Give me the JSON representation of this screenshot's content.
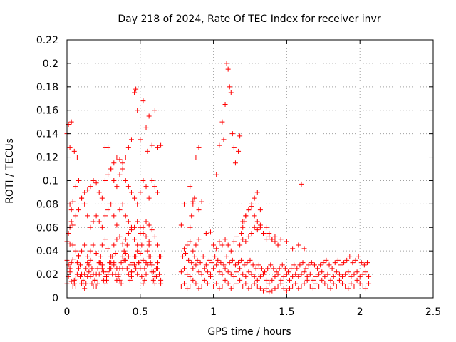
{
  "chart_data": {
    "type": "scatter",
    "title": "Day 218 of 2024, Rate Of TEC Index for receiver invr",
    "xlabel": "GPS time / hours",
    "ylabel": "ROTI / TECUs",
    "xlim": [
      0,
      2.5
    ],
    "ylim": [
      0,
      0.22
    ],
    "xticks": [
      0,
      0.5,
      1,
      1.5,
      2,
      2.5
    ],
    "xtick_labels": [
      "0",
      "0.5",
      "1",
      "1.5",
      "2",
      "2.5"
    ],
    "yticks": [
      0,
      0.02,
      0.04,
      0.06,
      0.08,
      0.1,
      0.12,
      0.14,
      0.16,
      0.18,
      0.2,
      0.22
    ],
    "ytick_labels": [
      "0",
      "0.02",
      "0.04",
      "0.06",
      "0.08",
      "0.1",
      "0.12",
      "0.14",
      "0.16",
      "0.18",
      "0.2",
      "0.22"
    ],
    "grid": true,
    "marker": "plus",
    "color": "#ff0000",
    "series": [
      {
        "name": "ROTI",
        "x": [
          0.0,
          0.01,
          0.02,
          0.03,
          0.04,
          0.05,
          0.06,
          0.07,
          0.08,
          0.09,
          0.1,
          0.11,
          0.12,
          0.13,
          0.14,
          0.15,
          0.16,
          0.17,
          0.18,
          0.19,
          0.2,
          0.21,
          0.22,
          0.23,
          0.24,
          0.25,
          0.26,
          0.27,
          0.28,
          0.29,
          0.3,
          0.31,
          0.32,
          0.33,
          0.34,
          0.35,
          0.36,
          0.37,
          0.38,
          0.39,
          0.4,
          0.41,
          0.42,
          0.43,
          0.44,
          0.45,
          0.46,
          0.47,
          0.48,
          0.49,
          0.5,
          0.51,
          0.52,
          0.53,
          0.54,
          0.55,
          0.56,
          0.57,
          0.58,
          0.59,
          0.6,
          0.61,
          0.62,
          0.63,
          0.64,
          0.0,
          0.01,
          0.02,
          0.03,
          0.04,
          0.05,
          0.06,
          0.07,
          0.08,
          0.09,
          0.1,
          0.11,
          0.12,
          0.13,
          0.14,
          0.15,
          0.16,
          0.17,
          0.18,
          0.19,
          0.2,
          0.21,
          0.22,
          0.23,
          0.24,
          0.25,
          0.26,
          0.27,
          0.28,
          0.29,
          0.3,
          0.31,
          0.32,
          0.33,
          0.34,
          0.35,
          0.36,
          0.37,
          0.38,
          0.39,
          0.4,
          0.41,
          0.42,
          0.43,
          0.44,
          0.45,
          0.46,
          0.47,
          0.48,
          0.49,
          0.5,
          0.51,
          0.52,
          0.53,
          0.54,
          0.55,
          0.56,
          0.57,
          0.58,
          0.59,
          0.6,
          0.61,
          0.62,
          0.63,
          0.64,
          0.0,
          0.02,
          0.04,
          0.06,
          0.08,
          0.1,
          0.12,
          0.14,
          0.16,
          0.18,
          0.2,
          0.22,
          0.24,
          0.26,
          0.28,
          0.3,
          0.32,
          0.34,
          0.36,
          0.38,
          0.4,
          0.42,
          0.44,
          0.46,
          0.48,
          0.5,
          0.52,
          0.54,
          0.56,
          0.58,
          0.6,
          0.62,
          0.64,
          0.01,
          0.02,
          0.03,
          0.04,
          0.06,
          0.08,
          0.1,
          0.12,
          0.14,
          0.16,
          0.18,
          0.2,
          0.22,
          0.24,
          0.26,
          0.28,
          0.3,
          0.32,
          0.34,
          0.36,
          0.38,
          0.4,
          0.42,
          0.44,
          0.46,
          0.48,
          0.5,
          0.52,
          0.54,
          0.56,
          0.0,
          0.01,
          0.02,
          0.03,
          0.05,
          0.07,
          0.26,
          0.28,
          0.3,
          0.32,
          0.34,
          0.36,
          0.38,
          0.4,
          0.42,
          0.44,
          0.46,
          0.47,
          0.48,
          0.5,
          0.52,
          0.54,
          0.55,
          0.56,
          0.58,
          0.6,
          0.62,
          0.64,
          0.02,
          0.03,
          0.04,
          0.06,
          0.08,
          0.1,
          0.12,
          0.14,
          0.16,
          0.18,
          0.2,
          0.22,
          0.24,
          0.26,
          0.28,
          0.3,
          0.32,
          0.34,
          0.36,
          0.38,
          0.4,
          0.42,
          0.44,
          0.46,
          0.48,
          0.5,
          0.52,
          0.54,
          0.56,
          0.58,
          0.6,
          0.62,
          0.78,
          0.8,
          0.82,
          0.84,
          0.86,
          0.88,
          0.9,
          0.92,
          0.94,
          0.96,
          0.98,
          1.0,
          1.02,
          1.04,
          1.06,
          1.08,
          1.1,
          1.12,
          1.14,
          1.16,
          1.18,
          1.2,
          1.22,
          1.24,
          1.26,
          1.28,
          1.3,
          1.32,
          1.34,
          1.36,
          1.38,
          1.4,
          1.42,
          1.44,
          1.46,
          1.48,
          1.5,
          1.52,
          1.54,
          1.56,
          1.58,
          1.6,
          1.62,
          1.64,
          1.66,
          1.68,
          1.7,
          1.72,
          1.74,
          1.76,
          1.78,
          1.8,
          1.82,
          1.84,
          1.86,
          1.88,
          1.9,
          1.92,
          1.94,
          1.96,
          1.98,
          2.0,
          2.02,
          2.04,
          2.06,
          0.78,
          0.8,
          0.82,
          0.84,
          0.86,
          0.88,
          0.9,
          0.92,
          0.94,
          0.96,
          0.98,
          1.0,
          1.02,
          1.04,
          1.06,
          1.08,
          1.1,
          1.12,
          1.14,
          1.16,
          1.18,
          1.2,
          1.22,
          1.24,
          1.26,
          1.28,
          1.3,
          1.32,
          1.34,
          1.36,
          1.38,
          1.4,
          1.42,
          1.44,
          1.46,
          1.48,
          1.5,
          1.52,
          1.54,
          1.56,
          1.58,
          1.6,
          1.62,
          1.64,
          1.66,
          1.68,
          1.7,
          1.72,
          1.74,
          1.76,
          1.78,
          1.8,
          1.82,
          1.84,
          1.86,
          1.88,
          1.9,
          1.92,
          1.94,
          1.96,
          1.98,
          2.0,
          2.02,
          2.04,
          2.06,
          0.79,
          0.81,
          0.83,
          0.85,
          0.87,
          0.89,
          0.91,
          0.93,
          0.95,
          0.97,
          0.99,
          1.01,
          1.03,
          1.05,
          1.07,
          1.09,
          1.11,
          1.13,
          1.15,
          1.17,
          1.19,
          1.21,
          1.23,
          1.25,
          1.27,
          1.29,
          1.31,
          1.33,
          1.35,
          1.37,
          1.39,
          1.41,
          1.43,
          1.45,
          1.47,
          1.49,
          1.51,
          1.53,
          1.55,
          1.57,
          1.59,
          1.61,
          1.63,
          1.65,
          1.67,
          1.69,
          1.71,
          1.73,
          1.75,
          1.77,
          1.79,
          1.81,
          1.83,
          1.85,
          1.87,
          1.89,
          1.91,
          1.93,
          1.95,
          1.97,
          1.99,
          2.01,
          2.03,
          2.05,
          0.8,
          0.82,
          0.84,
          0.86,
          0.88,
          0.9,
          0.95,
          0.98,
          1.0,
          1.02,
          1.04,
          1.06,
          1.08,
          1.1,
          1.12,
          1.14,
          1.16,
          1.18,
          1.2,
          1.22,
          1.24,
          1.26,
          1.28,
          1.3,
          1.32,
          1.34,
          1.36,
          1.38,
          1.4,
          1.42,
          1.44,
          1.46,
          1.5,
          1.54,
          1.58,
          1.62,
          0.78,
          0.8,
          0.84,
          0.86,
          0.88,
          0.9,
          1.02,
          1.04,
          1.06,
          1.07,
          1.08,
          1.09,
          1.1,
          1.11,
          1.12,
          1.13,
          1.14,
          1.15,
          1.16,
          1.17,
          1.18,
          1.2,
          1.22,
          1.24,
          1.26,
          1.28,
          1.3,
          1.32,
          1.6,
          0.84,
          0.85,
          0.86,
          0.87,
          0.9,
          0.92,
          1.19,
          1.2,
          1.21,
          1.22,
          1.24,
          1.26,
          1.28,
          1.3,
          1.32,
          1.34,
          1.36,
          1.38,
          1.4,
          1.42
        ],
        "y": [
          0.012,
          0.018,
          0.025,
          0.03,
          0.033,
          0.015,
          0.01,
          0.02,
          0.025,
          0.018,
          0.012,
          0.015,
          0.02,
          0.025,
          0.03,
          0.022,
          0.018,
          0.012,
          0.01,
          0.015,
          0.02,
          0.025,
          0.03,
          0.035,
          0.028,
          0.022,
          0.018,
          0.015,
          0.02,
          0.025,
          0.03,
          0.035,
          0.028,
          0.02,
          0.015,
          0.018,
          0.025,
          0.03,
          0.035,
          0.04,
          0.032,
          0.025,
          0.02,
          0.015,
          0.018,
          0.022,
          0.028,
          0.035,
          0.04,
          0.03,
          0.025,
          0.018,
          0.012,
          0.015,
          0.02,
          0.028,
          0.035,
          0.03,
          0.022,
          0.015,
          0.012,
          0.018,
          0.025,
          0.02,
          0.015,
          0.032,
          0.028,
          0.022,
          0.014,
          0.01,
          0.012,
          0.016,
          0.03,
          0.035,
          0.028,
          0.02,
          0.012,
          0.008,
          0.012,
          0.018,
          0.028,
          0.032,
          0.025,
          0.02,
          0.015,
          0.01,
          0.012,
          0.02,
          0.03,
          0.025,
          0.015,
          0.012,
          0.018,
          0.022,
          0.03,
          0.025,
          0.02,
          0.03,
          0.038,
          0.025,
          0.02,
          0.015,
          0.012,
          0.025,
          0.032,
          0.038,
          0.045,
          0.035,
          0.028,
          0.022,
          0.03,
          0.035,
          0.025,
          0.02,
          0.03,
          0.038,
          0.045,
          0.032,
          0.025,
          0.03,
          0.04,
          0.045,
          0.035,
          0.028,
          0.022,
          0.018,
          0.025,
          0.03,
          0.035,
          0.012,
          0.048,
          0.046,
          0.045,
          0.04,
          0.036,
          0.04,
          0.045,
          0.035,
          0.04,
          0.045,
          0.038,
          0.03,
          0.045,
          0.05,
          0.042,
          0.035,
          0.045,
          0.05,
          0.052,
          0.046,
          0.05,
          0.055,
          0.058,
          0.05,
          0.045,
          0.055,
          0.06,
          0.052,
          0.048,
          0.058,
          0.052,
          0.045,
          0.035,
          0.055,
          0.06,
          0.065,
          0.062,
          0.07,
          0.075,
          0.085,
          0.08,
          0.07,
          0.06,
          0.065,
          0.07,
          0.065,
          0.06,
          0.07,
          0.075,
          0.08,
          0.07,
          0.062,
          0.075,
          0.08,
          0.07,
          0.065,
          0.06,
          0.06,
          0.065,
          0.06,
          0.055,
          0.065,
          0.062,
          0.14,
          0.148,
          0.128,
          0.15,
          0.125,
          0.12,
          0.128,
          0.128,
          0.11,
          0.115,
          0.12,
          0.118,
          0.115,
          0.12,
          0.128,
          0.135,
          0.175,
          0.178,
          0.16,
          0.135,
          0.168,
          0.145,
          0.125,
          0.155,
          0.13,
          0.16,
          0.128,
          0.13,
          0.08,
          0.075,
          0.082,
          0.095,
          0.1,
          0.085,
          0.09,
          0.092,
          0.095,
          0.1,
          0.098,
          0.09,
          0.085,
          0.1,
          0.105,
          0.11,
          0.1,
          0.095,
          0.105,
          0.11,
          0.1,
          0.095,
          0.09,
          0.085,
          0.08,
          0.09,
          0.1,
          0.095,
          0.085,
          0.1,
          0.095,
          0.09,
          0.01,
          0.012,
          0.008,
          0.01,
          0.015,
          0.012,
          0.008,
          0.01,
          0.015,
          0.012,
          0.018,
          0.01,
          0.012,
          0.008,
          0.01,
          0.015,
          0.012,
          0.008,
          0.01,
          0.012,
          0.015,
          0.01,
          0.012,
          0.008,
          0.01,
          0.012,
          0.01,
          0.008,
          0.006,
          0.008,
          0.005,
          0.006,
          0.008,
          0.01,
          0.012,
          0.008,
          0.006,
          0.008,
          0.01,
          0.012,
          0.008,
          0.01,
          0.012,
          0.015,
          0.01,
          0.008,
          0.012,
          0.01,
          0.015,
          0.012,
          0.01,
          0.008,
          0.012,
          0.01,
          0.015,
          0.012,
          0.01,
          0.008,
          0.012,
          0.01,
          0.015,
          0.012,
          0.01,
          0.008,
          0.012,
          0.022,
          0.025,
          0.02,
          0.018,
          0.025,
          0.028,
          0.022,
          0.02,
          0.025,
          0.022,
          0.02,
          0.025,
          0.028,
          0.022,
          0.02,
          0.025,
          0.022,
          0.02,
          0.018,
          0.022,
          0.025,
          0.02,
          0.018,
          0.022,
          0.02,
          0.018,
          0.015,
          0.018,
          0.02,
          0.015,
          0.012,
          0.015,
          0.018,
          0.02,
          0.015,
          0.018,
          0.02,
          0.015,
          0.018,
          0.02,
          0.018,
          0.02,
          0.022,
          0.018,
          0.02,
          0.015,
          0.018,
          0.02,
          0.022,
          0.018,
          0.02,
          0.015,
          0.018,
          0.022,
          0.02,
          0.018,
          0.02,
          0.022,
          0.018,
          0.02,
          0.022,
          0.018,
          0.02,
          0.022,
          0.018,
          0.035,
          0.038,
          0.032,
          0.03,
          0.035,
          0.032,
          0.03,
          0.035,
          0.028,
          0.032,
          0.03,
          0.035,
          0.032,
          0.03,
          0.028,
          0.035,
          0.03,
          0.032,
          0.028,
          0.03,
          0.032,
          0.028,
          0.03,
          0.032,
          0.028,
          0.025,
          0.028,
          0.025,
          0.022,
          0.025,
          0.028,
          0.025,
          0.022,
          0.025,
          0.028,
          0.025,
          0.022,
          0.025,
          0.028,
          0.025,
          0.028,
          0.03,
          0.025,
          0.028,
          0.03,
          0.028,
          0.025,
          0.028,
          0.03,
          0.032,
          0.028,
          0.025,
          0.03,
          0.032,
          0.028,
          0.03,
          0.032,
          0.035,
          0.03,
          0.032,
          0.035,
          0.03,
          0.028,
          0.03,
          0.042,
          0.045,
          0.048,
          0.04,
          0.045,
          0.05,
          0.055,
          0.056,
          0.045,
          0.042,
          0.048,
          0.045,
          0.05,
          0.045,
          0.04,
          0.048,
          0.052,
          0.045,
          0.05,
          0.048,
          0.052,
          0.055,
          0.06,
          0.058,
          0.062,
          0.055,
          0.05,
          0.052,
          0.05,
          0.048,
          0.045,
          0.05,
          0.048,
          0.042,
          0.045,
          0.042,
          0.062,
          0.08,
          0.095,
          0.082,
          0.12,
          0.128,
          0.105,
          0.13,
          0.15,
          0.135,
          0.165,
          0.2,
          0.195,
          0.18,
          0.175,
          0.14,
          0.128,
          0.115,
          0.12,
          0.125,
          0.138,
          0.065,
          0.07,
          0.075,
          0.08,
          0.085,
          0.09,
          0.075,
          0.097,
          0.06,
          0.07,
          0.08,
          0.085,
          0.075,
          0.082,
          0.055,
          0.06,
          0.065,
          0.07,
          0.075,
          0.078,
          0.07,
          0.065,
          0.06,
          0.055,
          0.06,
          0.055,
          0.05,
          0.052
        ]
      }
    ]
  }
}
